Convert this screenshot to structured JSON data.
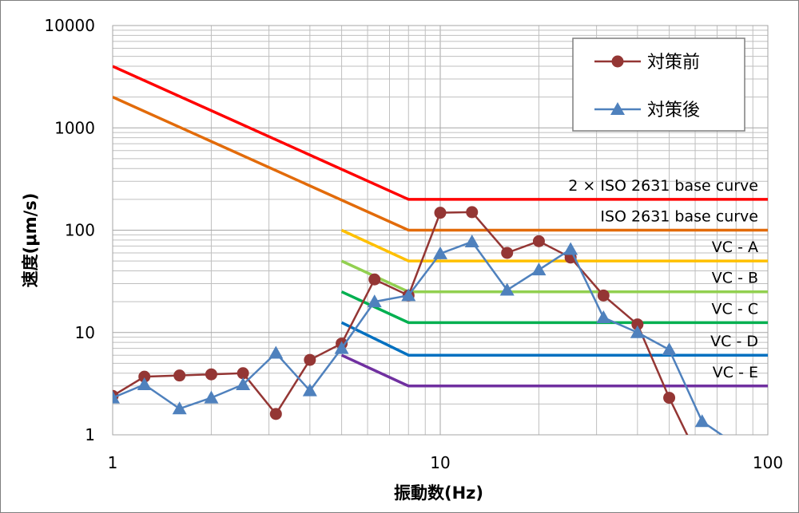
{
  "chart_data": {
    "type": "line",
    "title": "",
    "xlabel": "振動数(Hz)",
    "ylabel": "速度(μm/s)",
    "x_scale": "log",
    "y_scale": "log",
    "xlim": [
      1,
      100
    ],
    "ylim": [
      1,
      10000
    ],
    "x_ticks": [
      1,
      10,
      100
    ],
    "x_tick_labels": [
      "1",
      "10",
      "100"
    ],
    "y_ticks": [
      1,
      10,
      100,
      1000,
      10000
    ],
    "y_tick_labels": [
      "1",
      "10",
      "100",
      "1000",
      "10000"
    ],
    "grid": true,
    "legend_position": "top-right",
    "criteria_curves": [
      {
        "label": "2 × ISO 2631 base curve",
        "color": "#ff0000",
        "x": [
          1,
          8,
          100
        ],
        "y": [
          4000,
          200,
          200
        ]
      },
      {
        "label": "ISO 2631 base curve",
        "color": "#e26b0a",
        "x": [
          1,
          8,
          100
        ],
        "y": [
          2000,
          100,
          100
        ]
      },
      {
        "label": "VC - A",
        "color": "#ffc000",
        "x": [
          5,
          8,
          100
        ],
        "y": [
          100,
          50,
          50
        ]
      },
      {
        "label": "VC - B",
        "color": "#92d050",
        "x": [
          5,
          8,
          100
        ],
        "y": [
          50,
          25,
          25
        ]
      },
      {
        "label": "VC - C",
        "color": "#00b050",
        "x": [
          5,
          8,
          100
        ],
        "y": [
          25,
          12.5,
          12.5
        ]
      },
      {
        "label": "VC - D",
        "color": "#0070c0",
        "x": [
          5,
          8,
          100
        ],
        "y": [
          12.5,
          6,
          6
        ]
      },
      {
        "label": "VC - E",
        "color": "#7030a0",
        "x": [
          5,
          8,
          100
        ],
        "y": [
          6,
          3,
          3
        ]
      }
    ],
    "series": [
      {
        "name": "対策前",
        "color": "#943634",
        "marker": "circle",
        "x": [
          1,
          1.25,
          1.6,
          2,
          2.5,
          3.15,
          4,
          5,
          6.3,
          8,
          10,
          12.5,
          16,
          20,
          25,
          31.5,
          40,
          50,
          63
        ],
        "y": [
          2.4,
          3.7,
          3.8,
          3.9,
          4.0,
          1.6,
          5.4,
          7.8,
          33,
          23,
          148,
          150,
          60,
          78,
          54,
          23,
          12,
          2.3,
          0.5
        ]
      },
      {
        "name": "対策後",
        "color": "#4f81bd",
        "marker": "triangle",
        "x": [
          1,
          1.25,
          1.6,
          2,
          2.5,
          3.15,
          4,
          5,
          6.3,
          8,
          10,
          12.5,
          16,
          20,
          25,
          31.5,
          40,
          50,
          63,
          80
        ],
        "y": [
          2.3,
          3.1,
          1.8,
          2.3,
          3.1,
          6.3,
          2.7,
          7.0,
          20,
          23,
          59,
          77,
          26,
          41,
          65,
          14,
          10,
          6.8,
          1.35,
          0.8
        ]
      }
    ]
  }
}
